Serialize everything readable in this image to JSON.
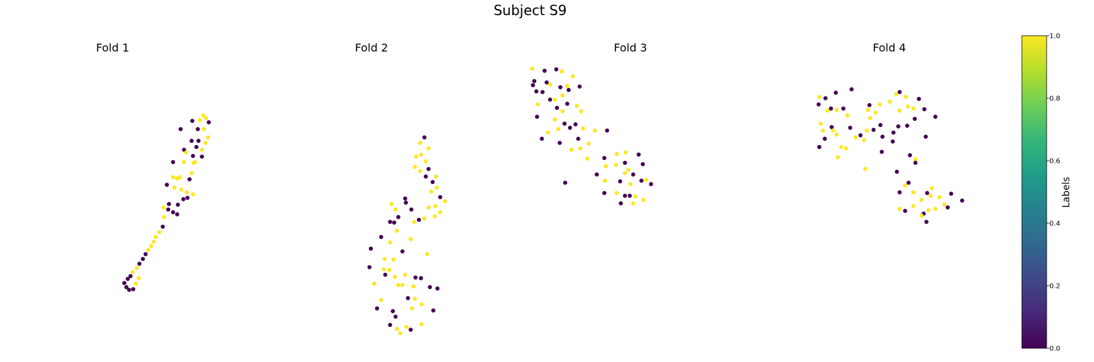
{
  "title": "Subject S9",
  "colorbar": {
    "label": "Labels",
    "ticks": [
      "0.0",
      "0.2",
      "0.4",
      "0.6",
      "0.8",
      "1.0"
    ],
    "range": [
      0,
      1
    ],
    "colormap": "viridis",
    "stops": [
      "#440154",
      "#482878",
      "#3e4989",
      "#31688e",
      "#26828e",
      "#1f9e89",
      "#35b779",
      "#6ece58",
      "#b5de2b",
      "#fde725"
    ]
  },
  "colors": {
    "label_0": "#440154",
    "label_1": "#fde725"
  },
  "chart_data": [
    {
      "type": "scatter",
      "title": "Fold 1",
      "axes": "off",
      "points": [
        [
          296,
          168,
          1
        ],
        [
          300,
          172,
          1
        ],
        [
          304,
          178,
          0
        ],
        [
          291,
          175,
          1
        ],
        [
          280,
          176,
          0
        ],
        [
          288,
          188,
          0
        ],
        [
          297,
          188,
          1
        ],
        [
          303,
          200,
          1
        ],
        [
          299,
          208,
          1
        ],
        [
          289,
          205,
          0
        ],
        [
          294,
          218,
          1
        ],
        [
          286,
          214,
          0
        ],
        [
          279,
          205,
          0
        ],
        [
          263,
          188,
          0
        ],
        [
          268,
          218,
          0
        ],
        [
          271,
          222,
          1
        ],
        [
          281,
          227,
          0
        ],
        [
          284,
          236,
          1
        ],
        [
          294,
          228,
          0
        ],
        [
          252,
          236,
          0
        ],
        [
          268,
          236,
          1
        ],
        [
          282,
          237,
          1
        ],
        [
          279,
          252,
          1
        ],
        [
          276,
          261,
          0
        ],
        [
          262,
          258,
          1
        ],
        [
          258,
          260,
          1
        ],
        [
          252,
          258,
          1
        ],
        [
          254,
          273,
          1
        ],
        [
          243,
          269,
          0
        ],
        [
          264,
          276,
          1
        ],
        [
          272,
          280,
          1
        ],
        [
          281,
          283,
          1
        ],
        [
          273,
          288,
          0
        ],
        [
          267,
          290,
          0
        ],
        [
          259,
          298,
          0
        ],
        [
          246,
          297,
          0
        ],
        [
          238,
          302,
          1
        ],
        [
          245,
          305,
          0
        ],
        [
          252,
          309,
          0
        ],
        [
          258,
          312,
          0
        ],
        [
          239,
          316,
          1
        ],
        [
          237,
          330,
          0
        ],
        [
          232,
          338,
          1
        ],
        [
          227,
          345,
          1
        ],
        [
          224,
          352,
          1
        ],
        [
          220,
          358,
          1
        ],
        [
          216,
          364,
          1
        ],
        [
          212,
          370,
          0
        ],
        [
          208,
          377,
          0
        ],
        [
          203,
          384,
          0
        ],
        [
          199,
          390,
          1
        ],
        [
          193,
          396,
          1
        ],
        [
          190,
          402,
          0
        ],
        [
          186,
          406,
          0
        ],
        [
          181,
          412,
          0
        ],
        [
          184,
          418,
          0
        ],
        [
          188,
          422,
          0
        ],
        [
          194,
          421,
          0
        ],
        [
          198,
          413,
          1
        ],
        [
          202,
          405,
          1
        ]
      ]
    },
    {
      "type": "scatter",
      "title": "Fold 2",
      "axes": "off",
      "points": [
        [
          618,
          200,
          0
        ],
        [
          612,
          208,
          1
        ],
        [
          624,
          216,
          1
        ],
        [
          613,
          225,
          1
        ],
        [
          606,
          228,
          1
        ],
        [
          620,
          235,
          1
        ],
        [
          604,
          243,
          1
        ],
        [
          612,
          249,
          1
        ],
        [
          624,
          246,
          0
        ],
        [
          635,
          257,
          1
        ],
        [
          620,
          257,
          0
        ],
        [
          630,
          265,
          0
        ],
        [
          636,
          273,
          1
        ],
        [
          628,
          279,
          1
        ],
        [
          641,
          287,
          0
        ],
        [
          648,
          293,
          1
        ],
        [
          634,
          300,
          1
        ],
        [
          624,
          302,
          1
        ],
        [
          641,
          309,
          1
        ],
        [
          633,
          315,
          1
        ],
        [
          618,
          318,
          1
        ],
        [
          603,
          323,
          1
        ],
        [
          610,
          320,
          0
        ],
        [
          599,
          305,
          0
        ],
        [
          590,
          289,
          0
        ],
        [
          591,
          295,
          0
        ],
        [
          576,
          305,
          1
        ],
        [
          570,
          297,
          1
        ],
        [
          580,
          316,
          0
        ],
        [
          568,
          323,
          0
        ],
        [
          574,
          324,
          0
        ],
        [
          555,
          345,
          0
        ],
        [
          568,
          353,
          1
        ],
        [
          578,
          336,
          1
        ],
        [
          598,
          348,
          1
        ],
        [
          586,
          366,
          0
        ],
        [
          540,
          362,
          0
        ],
        [
          560,
          377,
          1
        ],
        [
          573,
          378,
          1
        ],
        [
          567,
          393,
          1
        ],
        [
          538,
          389,
          0
        ],
        [
          559,
          392,
          1
        ],
        [
          561,
          400,
          0
        ],
        [
          575,
          403,
          1
        ],
        [
          545,
          413,
          1
        ],
        [
          590,
          400,
          1
        ],
        [
          580,
          415,
          1
        ],
        [
          586,
          415,
          1
        ],
        [
          605,
          404,
          0
        ],
        [
          613,
          405,
          0
        ],
        [
          626,
          418,
          0
        ],
        [
          637,
          420,
          0
        ],
        [
          602,
          417,
          1
        ],
        [
          622,
          370,
          1
        ],
        [
          594,
          434,
          0
        ],
        [
          604,
          435,
          1
        ],
        [
          614,
          443,
          1
        ],
        [
          549,
          449,
          0
        ],
        [
          572,
          453,
          0
        ],
        [
          600,
          449,
          1
        ],
        [
          631,
          452,
          0
        ],
        [
          576,
          461,
          0
        ],
        [
          568,
          473,
          0
        ],
        [
          578,
          479,
          1
        ],
        [
          592,
          476,
          1
        ],
        [
          583,
          485,
          1
        ],
        [
          598,
          480,
          0
        ],
        [
          614,
          472,
          1
        ],
        [
          555,
          437,
          1
        ]
      ]
    },
    {
      "type": "scatter",
      "title": "Fold 3",
      "axes": "off",
      "points": [
        [
          775,
          100,
          1
        ],
        [
          793,
          103,
          0
        ],
        [
          810,
          101,
          0
        ],
        [
          818,
          104,
          1
        ],
        [
          834,
          111,
          1
        ],
        [
          778,
          118,
          0
        ],
        [
          796,
          120,
          0
        ],
        [
          776,
          124,
          0
        ],
        [
          781,
          133,
          0
        ],
        [
          790,
          134,
          0
        ],
        [
          801,
          123,
          1
        ],
        [
          816,
          127,
          0
        ],
        [
          828,
          131,
          0
        ],
        [
          826,
          125,
          1
        ],
        [
          844,
          126,
          0
        ],
        [
          819,
          139,
          1
        ],
        [
          783,
          152,
          1
        ],
        [
          801,
          145,
          0
        ],
        [
          808,
          145,
          1
        ],
        [
          811,
          157,
          0
        ],
        [
          826,
          151,
          0
        ],
        [
          840,
          154,
          1
        ],
        [
          819,
          162,
          1
        ],
        [
          808,
          174,
          1
        ],
        [
          782,
          170,
          0
        ],
        [
          846,
          162,
          1
        ],
        [
          798,
          193,
          1
        ],
        [
          813,
          188,
          1
        ],
        [
          822,
          180,
          0
        ],
        [
          830,
          186,
          0
        ],
        [
          838,
          181,
          0
        ],
        [
          849,
          187,
          1
        ],
        [
          866,
          190,
          1
        ],
        [
          884,
          190,
          0
        ],
        [
          842,
          202,
          0
        ],
        [
          857,
          209,
          1
        ],
        [
          832,
          218,
          1
        ],
        [
          845,
          216,
          1
        ],
        [
          789,
          202,
          0
        ],
        [
          815,
          208,
          0
        ],
        [
          855,
          231,
          1
        ],
        [
          880,
          230,
          0
        ],
        [
          898,
          224,
          1
        ],
        [
          911,
          222,
          1
        ],
        [
          930,
          225,
          0
        ],
        [
          882,
          242,
          1
        ],
        [
          897,
          240,
          1
        ],
        [
          910,
          237,
          0
        ],
        [
          915,
          247,
          1
        ],
        [
          936,
          239,
          0
        ],
        [
          910,
          252,
          1
        ],
        [
          922,
          254,
          0
        ],
        [
          869,
          254,
          0
        ],
        [
          881,
          263,
          1
        ],
        [
          903,
          264,
          0
        ],
        [
          918,
          268,
          1
        ],
        [
          934,
          263,
          0
        ],
        [
          948,
          268,
          0
        ],
        [
          941,
          262,
          1
        ],
        [
          823,
          266,
          0
        ],
        [
          880,
          281,
          0
        ],
        [
          898,
          281,
          1
        ],
        [
          917,
          285,
          0
        ],
        [
          925,
          286,
          1
        ],
        [
          937,
          291,
          1
        ],
        [
          904,
          296,
          0
        ],
        [
          922,
          296,
          1
        ],
        [
          910,
          285,
          0
        ]
      ]
    },
    {
      "type": "scatter",
      "title": "Fold 4",
      "axes": "off",
      "points": [
        [
          1193,
          141,
          1
        ],
        [
          1202,
          143,
          0
        ],
        [
          1217,
          135,
          0
        ],
        [
          1240,
          130,
          0
        ],
        [
          1192,
          152,
          0
        ],
        [
          1205,
          161,
          1
        ],
        [
          1210,
          158,
          0
        ],
        [
          1218,
          160,
          1
        ],
        [
          1228,
          158,
          0
        ],
        [
          1234,
          168,
          1
        ],
        [
          1195,
          180,
          1
        ],
        [
          1198,
          190,
          1
        ],
        [
          1211,
          185,
          0
        ],
        [
          1213,
          190,
          1
        ],
        [
          1218,
          196,
          1
        ],
        [
          1201,
          202,
          0
        ],
        [
          1193,
          214,
          0
        ],
        [
          1220,
          229,
          1
        ],
        [
          1225,
          214,
          1
        ],
        [
          1232,
          216,
          1
        ],
        [
          1238,
          186,
          0
        ],
        [
          1246,
          200,
          1
        ],
        [
          1253,
          197,
          0
        ],
        [
          1258,
          204,
          1
        ],
        [
          1262,
          190,
          1
        ],
        [
          1272,
          189,
          0
        ],
        [
          1267,
          172,
          1
        ],
        [
          1264,
          160,
          1
        ],
        [
          1275,
          164,
          1
        ],
        [
          1266,
          153,
          0
        ],
        [
          1281,
          152,
          1
        ],
        [
          1296,
          148,
          1
        ],
        [
          1305,
          137,
          1
        ],
        [
          1310,
          134,
          0
        ],
        [
          1319,
          141,
          1
        ],
        [
          1330,
          158,
          1
        ],
        [
          1310,
          161,
          1
        ],
        [
          1322,
          155,
          1
        ],
        [
          1338,
          144,
          0
        ],
        [
          1346,
          159,
          0
        ],
        [
          1362,
          170,
          1
        ],
        [
          1362,
          170,
          0
        ],
        [
          1282,
          182,
          0
        ],
        [
          1285,
          199,
          0
        ],
        [
          1301,
          193,
          0
        ],
        [
          1300,
          206,
          0
        ],
        [
          1308,
          184,
          0
        ],
        [
          1321,
          183,
          0
        ],
        [
          1332,
          173,
          0
        ],
        [
          1348,
          199,
          0
        ],
        [
          1260,
          246,
          1
        ],
        [
          1284,
          221,
          0
        ],
        [
          1325,
          226,
          0
        ],
        [
          1333,
          232,
          1
        ],
        [
          1306,
          250,
          0
        ],
        [
          1333,
          237,
          0
        ],
        [
          1318,
          270,
          1
        ],
        [
          1330,
          280,
          1
        ],
        [
          1323,
          266,
          0
        ],
        [
          1310,
          280,
          0
        ],
        [
          1357,
          274,
          1
        ],
        [
          1350,
          281,
          0
        ],
        [
          1342,
          291,
          1
        ],
        [
          1355,
          285,
          1
        ],
        [
          1368,
          287,
          1
        ],
        [
          1385,
          282,
          0
        ],
        [
          1401,
          292,
          0
        ],
        [
          1375,
          298,
          1
        ],
        [
          1380,
          302,
          0
        ],
        [
          1352,
          306,
          1
        ],
        [
          1310,
          304,
          1
        ],
        [
          1318,
          307,
          0
        ],
        [
          1330,
          300,
          1
        ],
        [
          1345,
          311,
          0
        ],
        [
          1362,
          304,
          1
        ],
        [
          1349,
          323,
          0
        ],
        [
          1342,
          314,
          1
        ]
      ]
    }
  ]
}
